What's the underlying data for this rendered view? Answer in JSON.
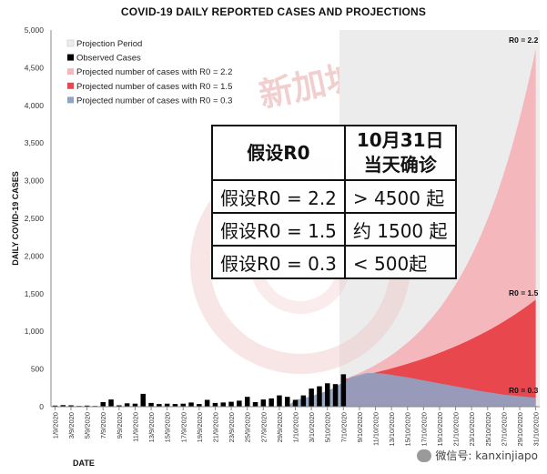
{
  "chart_data": {
    "type": "bar+area",
    "title": "COVID-19 DAILY REPORTED CASES AND PROJECTIONS",
    "xlabel": "DATE",
    "ylabel": "DAILY COVID-19 CASES",
    "ylim": [
      0,
      5000
    ],
    "y_ticks": [
      "0",
      "500",
      "1,000",
      "1,500",
      "2,000",
      "2,500",
      "3,000",
      "3,500",
      "4,000",
      "4,500",
      "5,000"
    ],
    "x_ticks": [
      "1/9/2020",
      "3/9/2020",
      "5/9/2020",
      "7/9/2020",
      "9/9/2020",
      "11/9/2020",
      "13/9/2020",
      "15/9/2020",
      "17/9/2020",
      "19/9/2020",
      "21/9/2020",
      "23/9/2020",
      "25/9/2020",
      "27/9/2020",
      "29/9/2020",
      "1/10/2020",
      "3/10/2020",
      "5/10/2020",
      "7/10/2020",
      "9/10/2020",
      "11/10/2020",
      "13/10/2020",
      "15/10/2020",
      "17/10/2020",
      "19/10/2020",
      "21/10/2020",
      "23/10/2020",
      "25/10/2020",
      "27/10/2020",
      "29/10/2020",
      "31/10/2020"
    ],
    "observed_start_day": 1,
    "observed_cases": [
      15,
      20,
      18,
      10,
      15,
      10,
      60,
      95,
      18,
      45,
      40,
      170,
      50,
      35,
      40,
      35,
      40,
      55,
      35,
      90,
      50,
      55,
      65,
      80,
      130,
      60,
      95,
      110,
      150,
      130,
      90,
      150,
      240,
      270,
      310,
      300,
      430
    ],
    "projection_start_day": 37,
    "projection_end_day": 61,
    "series": [
      {
        "name": "Projected number of cases with R0 = 2.2",
        "color": "#f4b8bc",
        "start": 360,
        "end": 4750
      },
      {
        "name": "Projected number of cases with R0 = 1.5",
        "color": "#e8474e",
        "start": 360,
        "end": 1420
      },
      {
        "name": "Projected number of cases with R0 = 0.3",
        "color": "#8fa3c2"
      }
    ],
    "r03_curve": [
      [
        30,
        0
      ],
      [
        31,
        90
      ],
      [
        32,
        110
      ],
      [
        33,
        140
      ],
      [
        34,
        175
      ],
      [
        35,
        210
      ],
      [
        36,
        260
      ],
      [
        37,
        330
      ],
      [
        38,
        395
      ],
      [
        40,
        450
      ],
      [
        42,
        440
      ],
      [
        45,
        390
      ],
      [
        48,
        330
      ],
      [
        51,
        270
      ],
      [
        54,
        210
      ],
      [
        57,
        160
      ],
      [
        61,
        120
      ]
    ],
    "legend": [
      {
        "label": "Projection Period",
        "color": "#ececec"
      },
      {
        "label": "Observed Cases",
        "color": "#000000"
      },
      {
        "label": "Projected number of cases with R0 = 2.2",
        "color": "#f4b8bc"
      },
      {
        "label": "Projected number of cases with R0 = 1.5",
        "color": "#e8474e"
      },
      {
        "label": "Projected number of cases with R0 = 0.3",
        "color": "#8fa3c2"
      }
    ],
    "end_labels": [
      "R0 = 2.2",
      "R0 = 1.5",
      "R0 = 0.3"
    ]
  },
  "overlay_table": {
    "header": [
      "假设R0",
      "10月31日\n当天确诊"
    ],
    "rows": [
      [
        "假设R0 = 2.2",
        "> 4500 起"
      ],
      [
        "假设R0 = 1.5",
        "约 1500 起"
      ],
      [
        "假设R0 = 0.3",
        "< 500起"
      ]
    ]
  },
  "watermark": {
    "text": "新加坡眼",
    "mark": "®"
  },
  "credit": "微信号: kanxinjiapo"
}
